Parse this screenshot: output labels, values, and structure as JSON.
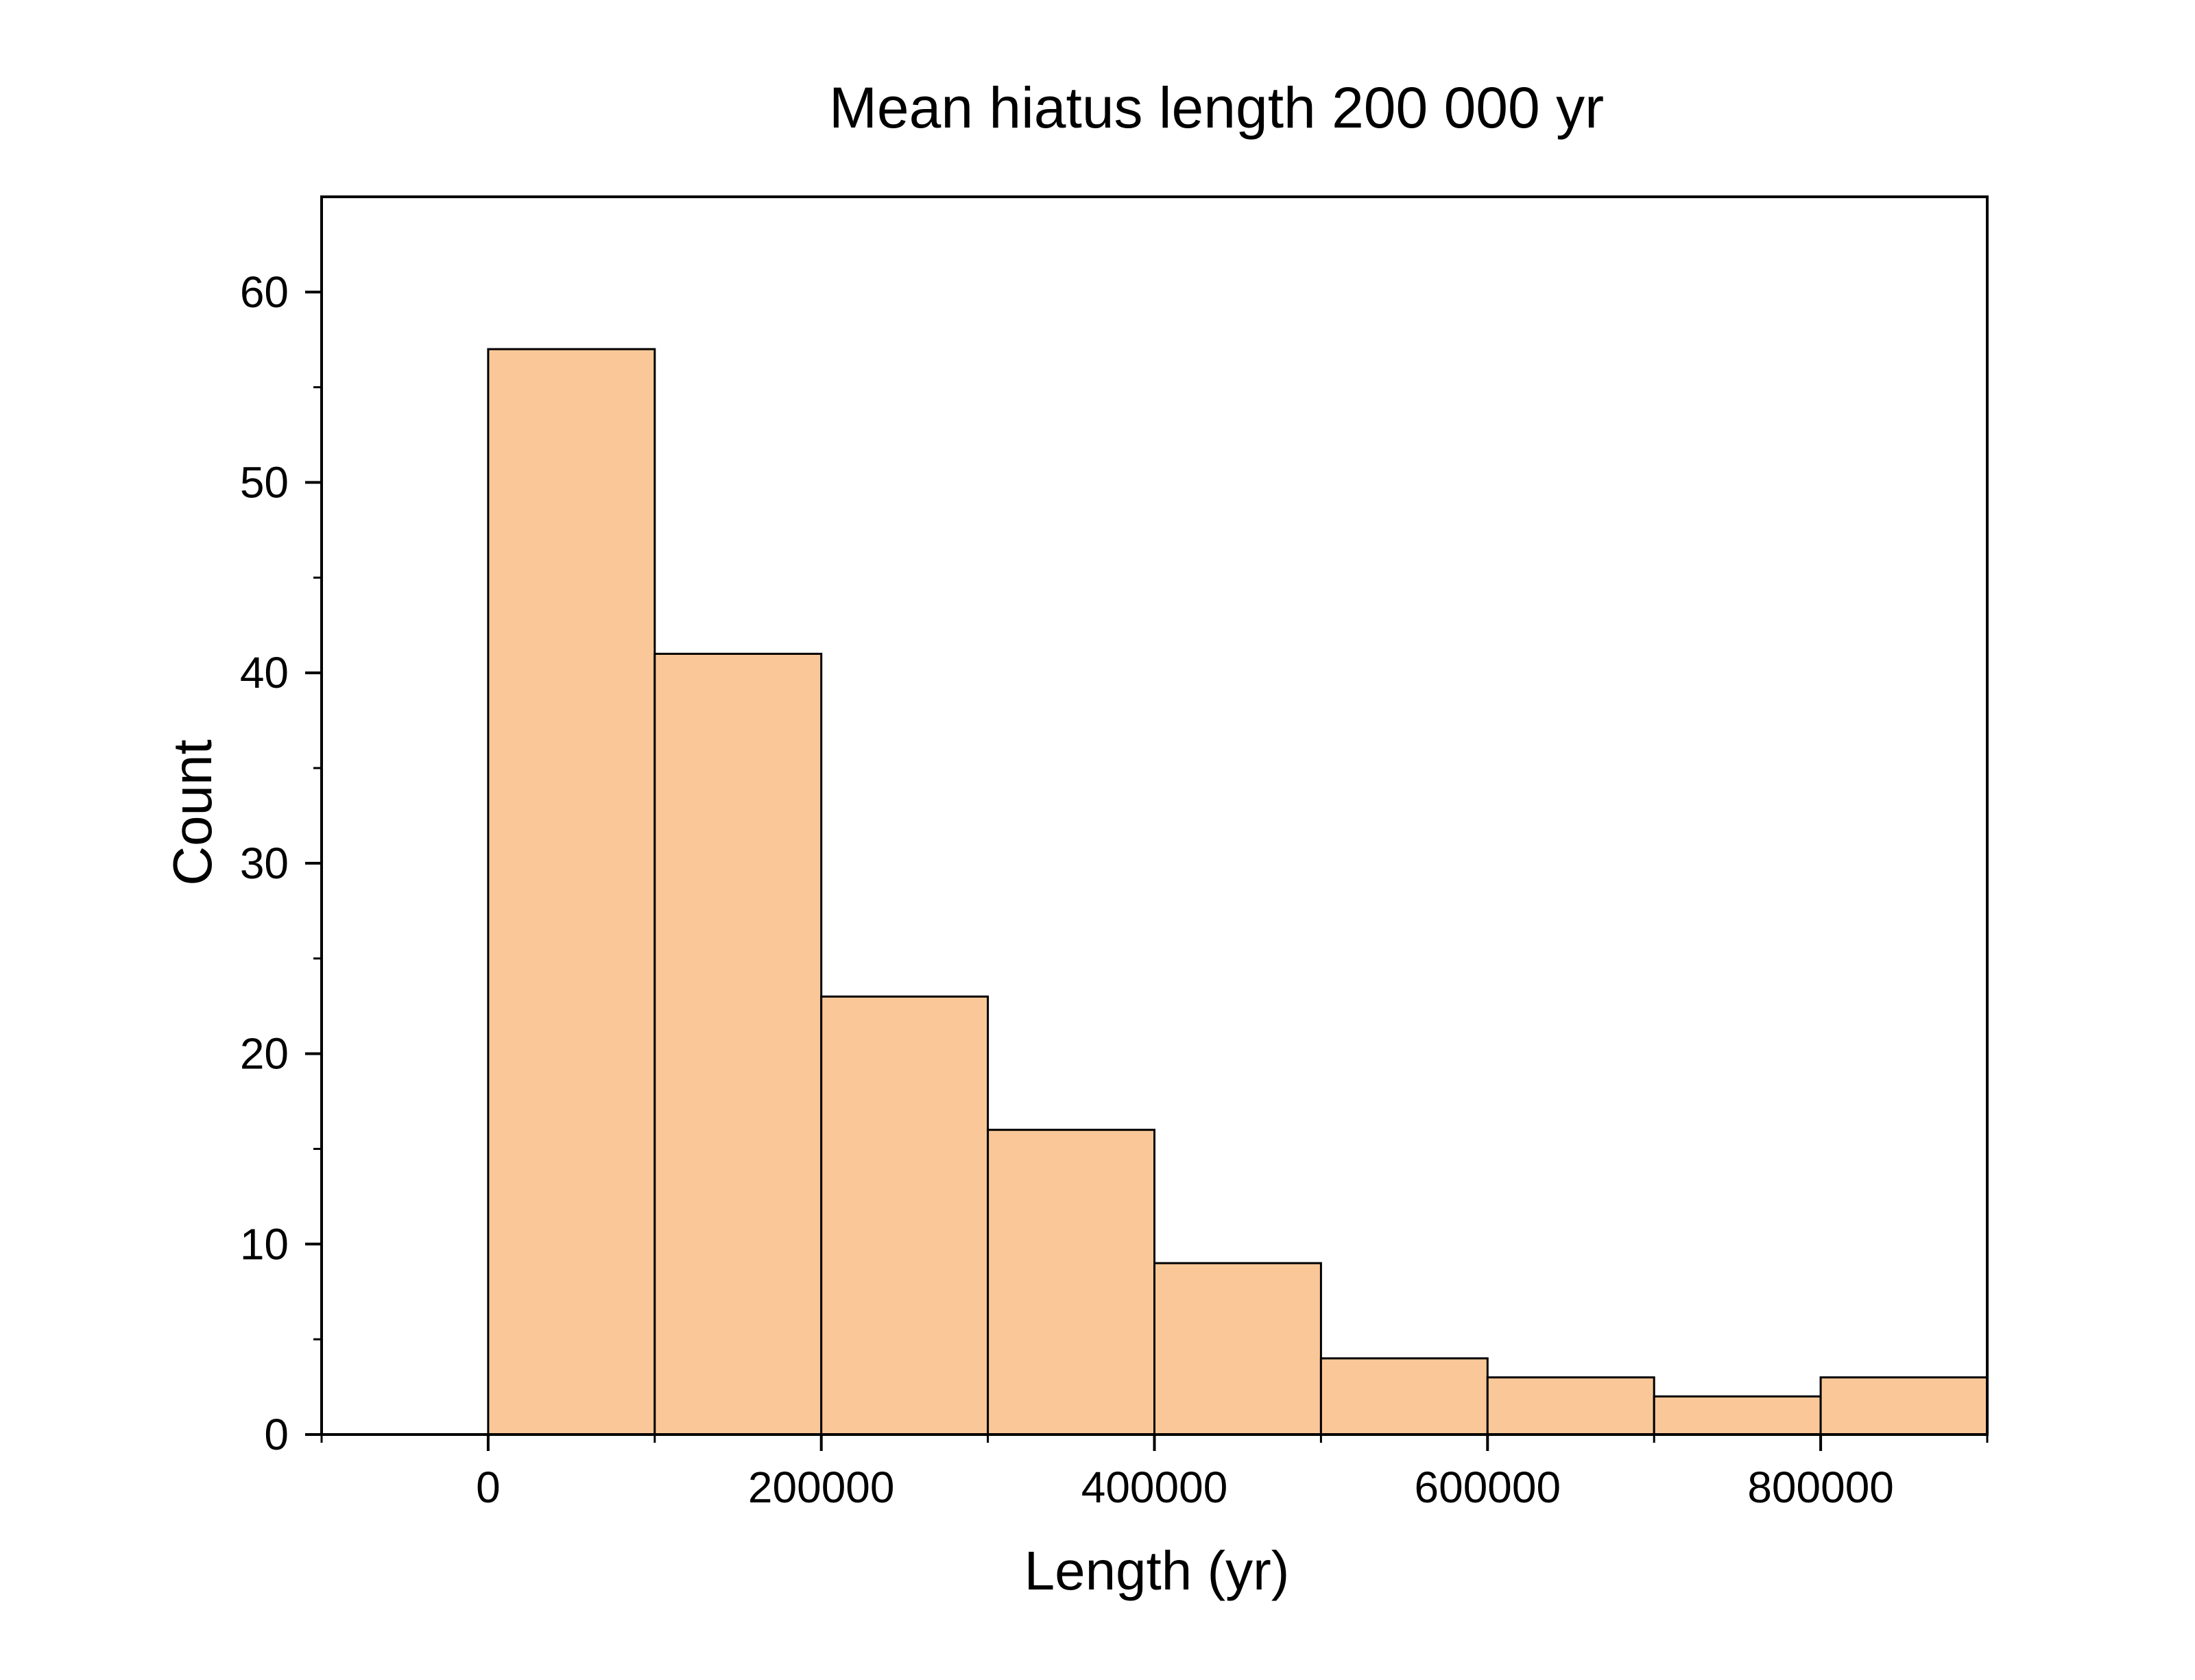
{
  "chart_data": {
    "type": "bar",
    "title": "Mean hiatus length 200 000 yr",
    "xlabel": "Length (yr)",
    "ylabel": "Count",
    "bins": [
      {
        "x0": 0,
        "x1": 100000,
        "count": 57
      },
      {
        "x0": 100000,
        "x1": 200000,
        "count": 41
      },
      {
        "x0": 200000,
        "x1": 300000,
        "count": 23
      },
      {
        "x0": 300000,
        "x1": 400000,
        "count": 16
      },
      {
        "x0": 400000,
        "x1": 500000,
        "count": 9
      },
      {
        "x0": 500000,
        "x1": 600000,
        "count": 4
      },
      {
        "x0": 600000,
        "x1": 700000,
        "count": 3
      },
      {
        "x0": 700000,
        "x1": 800000,
        "count": 2
      },
      {
        "x0": 800000,
        "x1": 900000,
        "count": 3
      }
    ],
    "xlim": [
      -100000,
      900000
    ],
    "ylim": [
      0,
      65
    ],
    "xticks": [
      0,
      200000,
      400000,
      600000,
      800000
    ],
    "xtick_labels": [
      "0",
      "200000",
      "400000",
      "600000",
      "800000"
    ],
    "yticks": [
      0,
      10,
      20,
      30,
      40,
      50,
      60
    ],
    "ytick_labels": [
      "0",
      "10",
      "20",
      "30",
      "40",
      "50",
      "60"
    ],
    "grid": false,
    "bar_color": "#fac898",
    "edge_color": "#000000"
  }
}
